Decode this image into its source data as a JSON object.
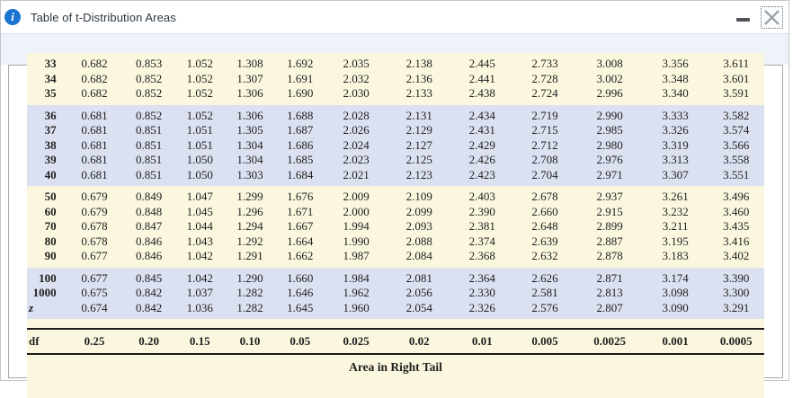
{
  "window": {
    "title": "Table of t-Distribution Areas",
    "titlebar": {
      "info_glyph": "i",
      "minimize_label": "minimize",
      "close_label": "close"
    }
  },
  "table": {
    "caption": "Area in Right Tail",
    "footer": {
      "df_label": "df",
      "areas": [
        "0.25",
        "0.20",
        "0.15",
        "0.10",
        "0.05",
        "0.025",
        "0.02",
        "0.01",
        "0.005",
        "0.0025",
        "0.001",
        "0.0005"
      ]
    },
    "groups": [
      {
        "tone": "cream",
        "rows": [
          {
            "df": "33",
            "values": [
              "0.682",
              "0.853",
              "1.052",
              "1.308",
              "1.692",
              "2.035",
              "2.138",
              "2.445",
              "2.733",
              "3.008",
              "3.356",
              "3.611"
            ]
          },
          {
            "df": "34",
            "values": [
              "0.682",
              "0.852",
              "1.052",
              "1.307",
              "1.691",
              "2.032",
              "2.136",
              "2.441",
              "2.728",
              "3.002",
              "3.348",
              "3.601"
            ]
          },
          {
            "df": "35",
            "values": [
              "0.682",
              "0.852",
              "1.052",
              "1.306",
              "1.690",
              "2.030",
              "2.133",
              "2.438",
              "2.724",
              "2.996",
              "3.340",
              "3.591"
            ]
          }
        ]
      },
      {
        "tone": "blue",
        "rows": [
          {
            "df": "36",
            "values": [
              "0.681",
              "0.852",
              "1.052",
              "1.306",
              "1.688",
              "2.028",
              "2.131",
              "2.434",
              "2.719",
              "2.990",
              "3.333",
              "3.582"
            ]
          },
          {
            "df": "37",
            "values": [
              "0.681",
              "0.851",
              "1.051",
              "1.305",
              "1.687",
              "2.026",
              "2.129",
              "2.431",
              "2.715",
              "2.985",
              "3.326",
              "3.574"
            ]
          },
          {
            "df": "38",
            "values": [
              "0.681",
              "0.851",
              "1.051",
              "1.304",
              "1.686",
              "2.024",
              "2.127",
              "2.429",
              "2.712",
              "2.980",
              "3.319",
              "3.566"
            ]
          },
          {
            "df": "39",
            "values": [
              "0.681",
              "0.851",
              "1.050",
              "1.304",
              "1.685",
              "2.023",
              "2.125",
              "2.426",
              "2.708",
              "2.976",
              "3.313",
              "3.558"
            ]
          },
          {
            "df": "40",
            "values": [
              "0.681",
              "0.851",
              "1.050",
              "1.303",
              "1.684",
              "2.021",
              "2.123",
              "2.423",
              "2.704",
              "2.971",
              "3.307",
              "3.551"
            ]
          }
        ]
      },
      {
        "tone": "cream",
        "rows": [
          {
            "df": "50",
            "values": [
              "0.679",
              "0.849",
              "1.047",
              "1.299",
              "1.676",
              "2.009",
              "2.109",
              "2.403",
              "2.678",
              "2.937",
              "3.261",
              "3.496"
            ]
          },
          {
            "df": "60",
            "values": [
              "0.679",
              "0.848",
              "1.045",
              "1.296",
              "1.671",
              "2.000",
              "2.099",
              "2.390",
              "2.660",
              "2.915",
              "3.232",
              "3.460"
            ]
          },
          {
            "df": "70",
            "values": [
              "0.678",
              "0.847",
              "1.044",
              "1.294",
              "1.667",
              "1.994",
              "2.093",
              "2.381",
              "2.648",
              "2.899",
              "3.211",
              "3.435"
            ]
          },
          {
            "df": "80",
            "values": [
              "0.678",
              "0.846",
              "1.043",
              "1.292",
              "1.664",
              "1.990",
              "2.088",
              "2.374",
              "2.639",
              "2.887",
              "3.195",
              "3.416"
            ]
          },
          {
            "df": "90",
            "values": [
              "0.677",
              "0.846",
              "1.042",
              "1.291",
              "1.662",
              "1.987",
              "2.084",
              "2.368",
              "2.632",
              "2.878",
              "3.183",
              "3.402"
            ]
          }
        ]
      },
      {
        "tone": "blue",
        "rows": [
          {
            "df": "100",
            "values": [
              "0.677",
              "0.845",
              "1.042",
              "1.290",
              "1.660",
              "1.984",
              "2.081",
              "2.364",
              "2.626",
              "2.871",
              "3.174",
              "3.390"
            ]
          },
          {
            "df": "1000",
            "values": [
              "0.675",
              "0.842",
              "1.037",
              "1.282",
              "1.646",
              "1.962",
              "2.056",
              "2.330",
              "2.581",
              "2.813",
              "3.098",
              "3.300"
            ]
          },
          {
            "df": "z",
            "values": [
              "0.674",
              "0.842",
              "1.036",
              "1.282",
              "1.645",
              "1.960",
              "2.054",
              "2.326",
              "2.576",
              "2.807",
              "3.090",
              "3.291"
            ]
          }
        ]
      }
    ]
  },
  "colors": {
    "band_cream": "#fbf7df",
    "band_blue": "#dbe1f1",
    "info_blue": "#1b74d1",
    "rule_black": "#1a1a1a"
  }
}
